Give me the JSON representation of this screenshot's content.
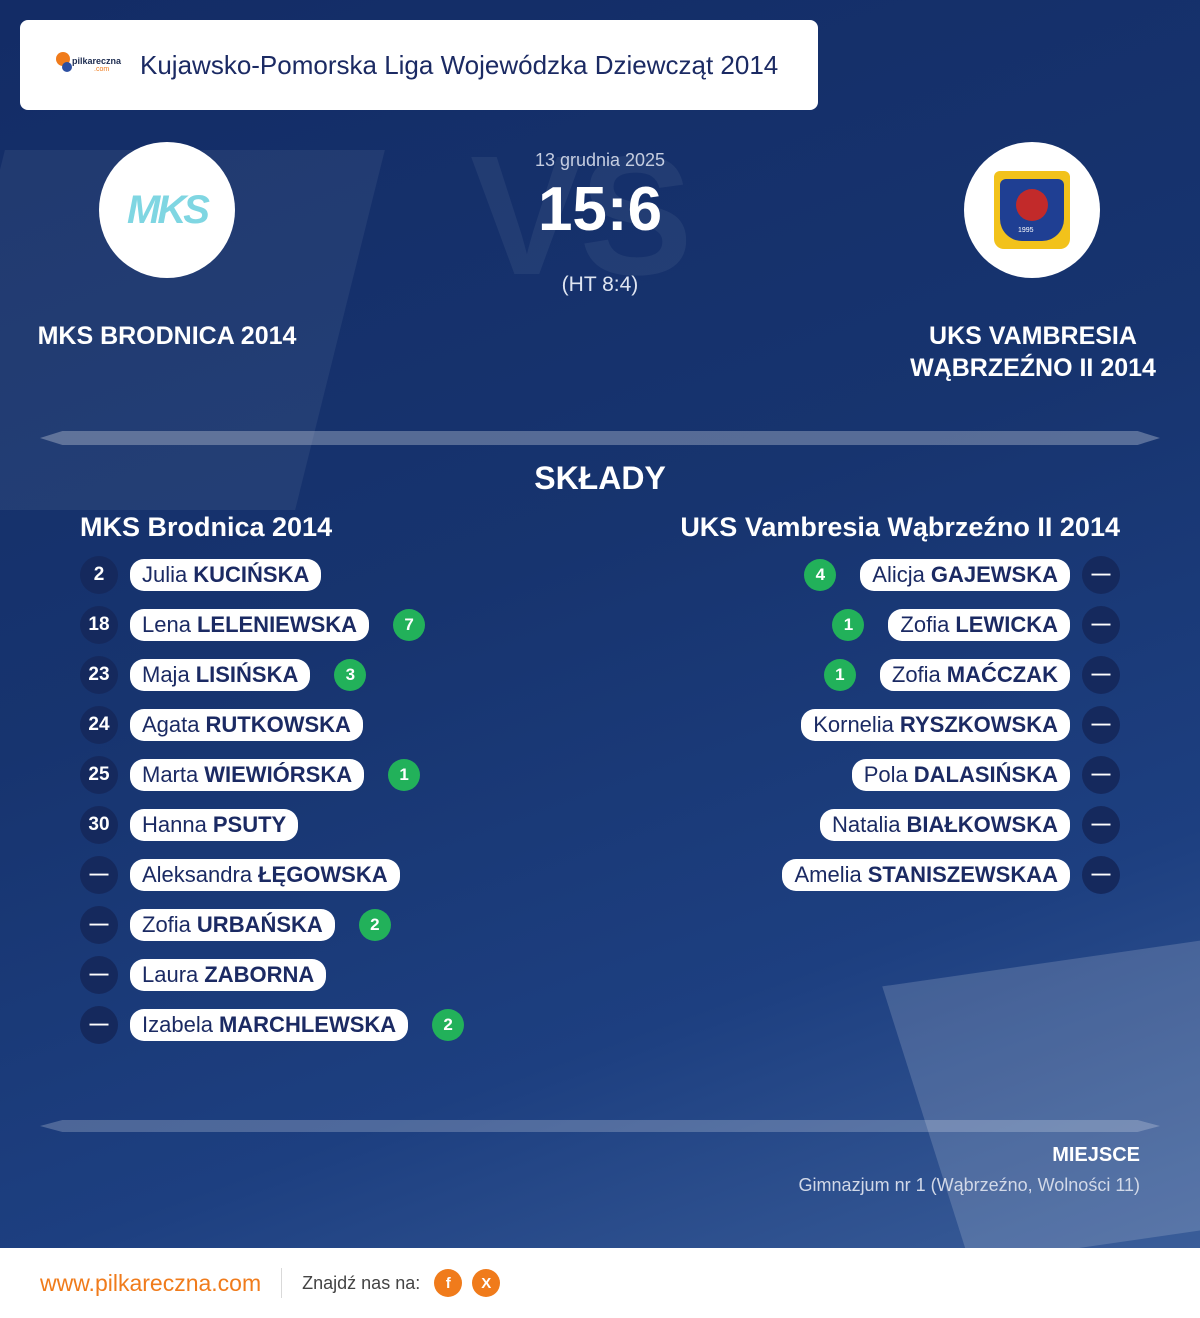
{
  "league": {
    "title": "Kujawsko-Pomorska Liga Wojewódzka Dziewcząt 2014",
    "logo_text": "pilkareczna",
    "logo_sub": ".com"
  },
  "match": {
    "date": "13 grudnia 2025",
    "score": "15:6",
    "halftime": "(HT 8:4)",
    "vs_text": "VS"
  },
  "home": {
    "name": "MKS BRODNICA 2014",
    "roster_title": "MKS Brodnica 2014",
    "logo_text": "MKS",
    "players": [
      {
        "number": "2",
        "first": "Julia",
        "last": "KUCIŃSKA",
        "goals": ""
      },
      {
        "number": "18",
        "first": "Lena",
        "last": "LELENIEWSKA",
        "goals": "7"
      },
      {
        "number": "23",
        "first": "Maja",
        "last": "LISIŃSKA",
        "goals": "3"
      },
      {
        "number": "24",
        "first": "Agata",
        "last": "RUTKOWSKA",
        "goals": ""
      },
      {
        "number": "25",
        "first": "Marta",
        "last": "WIEWIÓRSKA",
        "goals": "1"
      },
      {
        "number": "30",
        "first": "Hanna",
        "last": "PSUTY",
        "goals": ""
      },
      {
        "number": "—",
        "first": "Aleksandra",
        "last": "ŁĘGOWSKA",
        "goals": ""
      },
      {
        "number": "—",
        "first": "Zofia",
        "last": "URBAŃSKA",
        "goals": "2"
      },
      {
        "number": "—",
        "first": "Laura",
        "last": "ZABORNA",
        "goals": ""
      },
      {
        "number": "—",
        "first": "Izabela",
        "last": "MARCHLEWSKA",
        "goals": "2"
      }
    ]
  },
  "away": {
    "name_line1": "UKS VAMBRESIA",
    "name_line2": "WĄBRZEŹNO II 2014",
    "roster_title": "UKS Vambresia Wąbrzeźno II 2014",
    "logo_year": "1995",
    "players": [
      {
        "number": "—",
        "first": "Alicja",
        "last": "GAJEWSKA",
        "goals": "4"
      },
      {
        "number": "—",
        "first": "Zofia",
        "last": "LEWICKA",
        "goals": "1"
      },
      {
        "number": "—",
        "first": "Zofia",
        "last": "MAĆCZAK",
        "goals": "1"
      },
      {
        "number": "—",
        "first": "Kornelia",
        "last": "RYSZKOWSKA",
        "goals": ""
      },
      {
        "number": "—",
        "first": "Pola",
        "last": "DALASIŃSKA",
        "goals": ""
      },
      {
        "number": "—",
        "first": "Natalia",
        "last": "BIAŁKOWSKA",
        "goals": ""
      },
      {
        "number": "—",
        "first": "Amelia",
        "last": "STANISZEWSKAA",
        "goals": ""
      }
    ]
  },
  "lineups_title": "SKŁADY",
  "venue": {
    "label": "MIEJSCE",
    "value": "Gimnazjum nr 1 (Wąbrzeźno, Wolności 11)"
  },
  "footer": {
    "url": "www.pilkareczna.com",
    "find_us": "Znajdź nas na:",
    "facebook_letter": "f",
    "x_letter": "X"
  },
  "colors": {
    "accent": "#f07b1b",
    "background": "#17346f",
    "goal_badge": "#22b15a"
  }
}
